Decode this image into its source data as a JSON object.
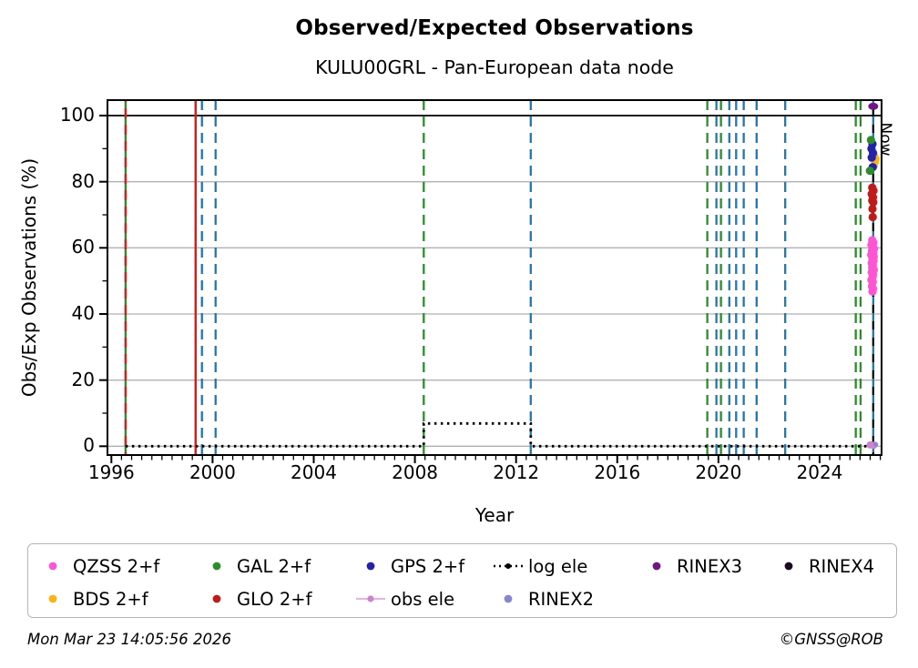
{
  "header": {
    "title": "Observed/Expected Observations",
    "subtitle": "KULU00GRL - Pan-European data node"
  },
  "footer": {
    "timestamp": "Mon Mar 23 14:05:56 2026",
    "copyright": "©GNSS@ROB"
  },
  "legend": {
    "rows": [
      [
        {
          "label": "QZSS 2+f",
          "type": "dot",
          "color": "#ff55d4"
        },
        {
          "label": "GAL 2+f",
          "type": "dot",
          "color": "#2e8b2e"
        },
        {
          "label": "GPS 2+f",
          "type": "dot",
          "color": "#2222aa"
        },
        {
          "label": "log ele",
          "type": "dotline",
          "color": "#000000"
        },
        {
          "label": "RINEX3",
          "type": "dot",
          "color": "#6f1782"
        },
        {
          "label": "RINEX4",
          "type": "dot",
          "color": "#1f0a24"
        }
      ],
      [
        {
          "label": "BDS 2+f",
          "type": "dot",
          "color": "#fcb116"
        },
        {
          "label": "GLO 2+f",
          "type": "dot",
          "color": "#bf1b1b"
        },
        {
          "label": "obs ele",
          "type": "linedot",
          "color": "#cc85cc"
        },
        {
          "label": "RINEX2",
          "type": "dot",
          "color": "#8787cf"
        }
      ]
    ]
  },
  "chart_data": {
    "type": "scatter",
    "title": "Observed/Expected Observations",
    "subtitle": "KULU00GRL - Pan-European data node",
    "xlabel": "Year",
    "ylabel": "Obs/Exp Observations (%)",
    "now_label": "Now",
    "now_year": 2026.12,
    "xlim": [
      1995.845,
      2026.45
    ],
    "ylim": [
      -2.66,
      104.68
    ],
    "xticks": [
      1996,
      2000,
      2004,
      2008,
      2012,
      2016,
      2020,
      2024
    ],
    "yticks": [
      0,
      20,
      40,
      60,
      80,
      100
    ],
    "x_minor_step": 0.4,
    "y_minor_values": [
      10,
      30,
      50,
      70,
      90
    ],
    "grid_values": [
      0,
      20,
      40,
      60,
      80
    ],
    "hline": 100,
    "grid_color": "#b0b0b0",
    "colors": {
      "green": "#2e8b2e",
      "red": "#e81717",
      "blue": "#1f77b4",
      "black": "#000000"
    },
    "events": [
      {
        "year": 1996.56,
        "color": "green",
        "style": "solid"
      },
      {
        "year": 1996.56,
        "color": "red",
        "style": "dashed",
        "phase": 9
      },
      {
        "year": 1999.33,
        "color": "red",
        "style": "solid"
      },
      {
        "year": 1999.58,
        "color": "blue",
        "style": "dashed"
      },
      {
        "year": 2000.12,
        "color": "blue",
        "style": "dashed"
      },
      {
        "year": 2008.35,
        "color": "green",
        "style": "dashed"
      },
      {
        "year": 2012.58,
        "color": "blue",
        "style": "dashed"
      },
      {
        "year": 2019.56,
        "color": "green",
        "style": "dashed"
      },
      {
        "year": 2019.92,
        "color": "blue",
        "style": "dashed"
      },
      {
        "year": 2020.1,
        "color": "green",
        "style": "dashed"
      },
      {
        "year": 2020.43,
        "color": "blue",
        "style": "dashed"
      },
      {
        "year": 2020.7,
        "color": "blue",
        "style": "dashed"
      },
      {
        "year": 2021.0,
        "color": "blue",
        "style": "dashed"
      },
      {
        "year": 2021.51,
        "color": "blue",
        "style": "dashed"
      },
      {
        "year": 2022.64,
        "color": "blue",
        "style": "dashed"
      },
      {
        "year": 2025.43,
        "color": "green",
        "style": "dashed"
      },
      {
        "year": 2025.62,
        "color": "green",
        "style": "dashed"
      },
      {
        "year": 2026.12,
        "color": "blue",
        "style": "dashed-alt"
      },
      {
        "year": 2026.12,
        "color": "black",
        "style": "dashed-alt",
        "phase": 9
      }
    ],
    "log_ele": {
      "label": "log ele",
      "path": [
        [
          1996.56,
          0
        ],
        [
          2008.35,
          0
        ],
        [
          2008.35,
          6.9
        ],
        [
          2012.58,
          6.9
        ],
        [
          2012.58,
          0
        ],
        [
          2026.12,
          0
        ]
      ]
    },
    "series": [
      {
        "name": "obs ele",
        "color": "#cc85cc",
        "r": 4.0,
        "points": [
          [
            2026.0,
            0.4
          ],
          [
            2026.14,
            0.3
          ]
        ]
      },
      {
        "name": "RINEX2",
        "color": "#8787cf",
        "r": 2.6,
        "points": [
          [
            2026.22,
            0.6
          ]
        ]
      },
      {
        "name": "QZSS 2+f",
        "color": "#ff55d4",
        "r": 4.6,
        "points": [
          [
            2026.08,
            62.3
          ],
          [
            2026.12,
            61.6
          ],
          [
            2026.05,
            60.9
          ],
          [
            2026.1,
            60.3
          ],
          [
            2026.15,
            59.7
          ],
          [
            2026.07,
            59.1
          ],
          [
            2026.12,
            58.5
          ],
          [
            2026.04,
            57.9
          ],
          [
            2026.14,
            57.3
          ],
          [
            2026.09,
            56.7
          ],
          [
            2026.13,
            56.1
          ],
          [
            2026.06,
            55.4
          ],
          [
            2026.1,
            54.7
          ],
          [
            2026.08,
            54.0
          ],
          [
            2026.14,
            53.3
          ],
          [
            2026.06,
            52.6
          ],
          [
            2026.11,
            51.9
          ],
          [
            2026.09,
            51.1
          ],
          [
            2026.05,
            50.3
          ],
          [
            2026.1,
            49.7
          ],
          [
            2026.07,
            48.4
          ],
          [
            2026.11,
            47.6
          ],
          [
            2026.09,
            46.8
          ]
        ]
      },
      {
        "name": "BDS 2+f",
        "color": "#fcb116",
        "r": 4.2,
        "points": [
          [
            2026.17,
            87.8
          ],
          [
            2026.22,
            86.9
          ],
          [
            2026.19,
            85.9
          ],
          [
            2026.16,
            84.9
          ]
        ]
      },
      {
        "name": "GLO 2+f",
        "color": "#bf1b1b",
        "r": 4.6,
        "points": [
          [
            2026.08,
            78.2
          ],
          [
            2026.13,
            77.3
          ],
          [
            2026.06,
            76.3
          ],
          [
            2026.11,
            75.3
          ],
          [
            2026.08,
            74.3
          ],
          [
            2026.12,
            73.8
          ],
          [
            2026.09,
            71.8
          ],
          [
            2026.1,
            69.3
          ]
        ]
      },
      {
        "name": "GPS 2+f",
        "color": "#2222aa",
        "r": 4.6,
        "points": [
          [
            2026.09,
            91.4
          ],
          [
            2026.05,
            90.0
          ],
          [
            2026.11,
            88.7
          ],
          [
            2026.06,
            87.3
          ],
          [
            2026.1,
            84.4
          ]
        ]
      },
      {
        "name": "GAL 2+f",
        "color": "#2e8b2e",
        "r": 4.6,
        "points": [
          [
            2026.03,
            92.6
          ],
          [
            2025.99,
            83.3
          ]
        ]
      },
      {
        "name": "RINEX3",
        "color": "#6f1782",
        "ellipse": [
          5.5,
          4.0
        ],
        "points": [
          [
            2026.12,
            102.8
          ]
        ]
      }
    ]
  }
}
